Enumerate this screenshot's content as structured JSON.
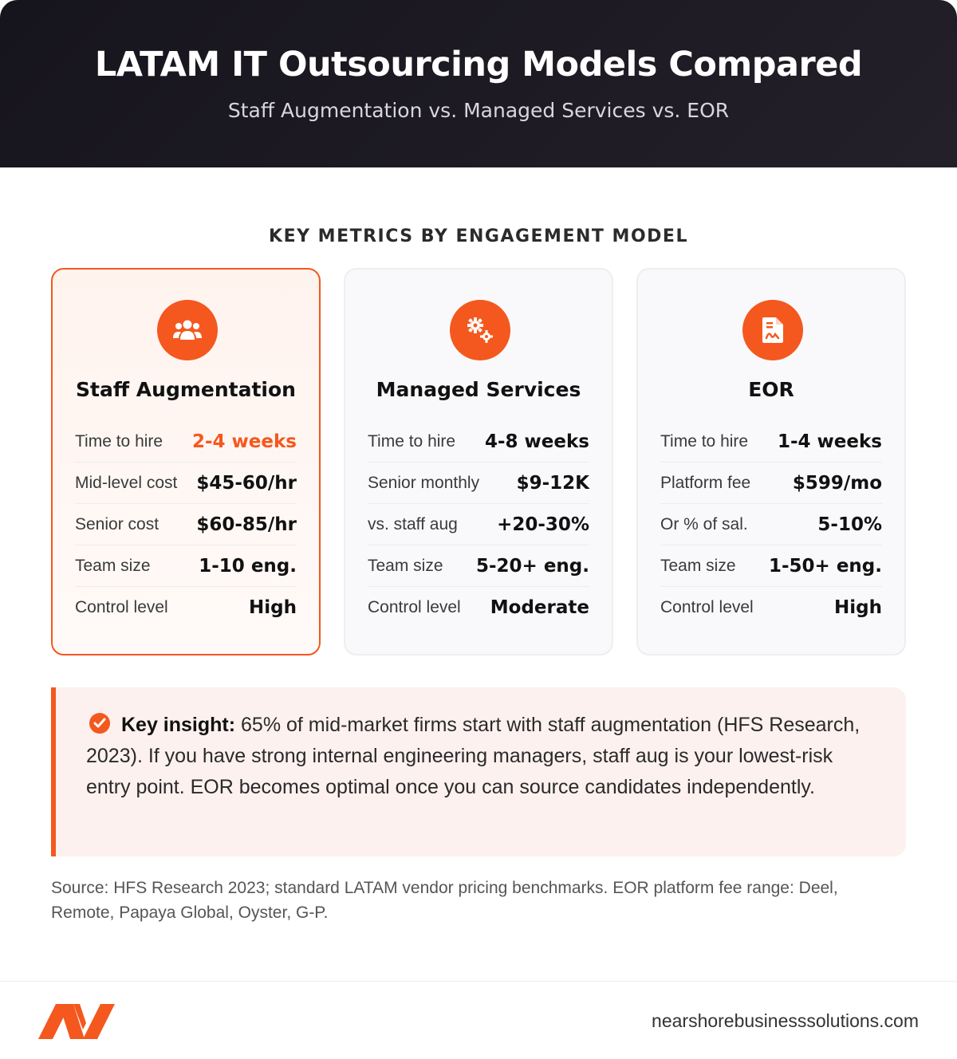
{
  "header": {
    "title": "LATAM IT Outsourcing Models Compared",
    "subtitle": "Staff Augmentation vs. Managed Services vs. EOR"
  },
  "section_title": "KEY METRICS BY ENGAGEMENT MODEL",
  "colors": {
    "accent": "#f4581e",
    "header_bg": "#1c1a22"
  },
  "cards": [
    {
      "title": "Staff Augmentation",
      "icon": "users-group-icon",
      "highlighted": true,
      "rows": [
        {
          "label": "Time to hire",
          "value": "2-4 weeks"
        },
        {
          "label": "Mid-level cost",
          "value": "$45-60/hr"
        },
        {
          "label": "Senior cost",
          "value": "$60-85/hr"
        },
        {
          "label": "Team size",
          "value": "1-10 eng."
        },
        {
          "label": "Control level",
          "value": "High"
        }
      ]
    },
    {
      "title": "Managed Services",
      "icon": "gears-icon",
      "highlighted": false,
      "rows": [
        {
          "label": "Time to hire",
          "value": "4-8 weeks"
        },
        {
          "label": "Senior monthly",
          "value": "$9-12K"
        },
        {
          "label": "vs. staff aug",
          "value": "+20-30%"
        },
        {
          "label": "Team size",
          "value": "5-20+ eng."
        },
        {
          "label": "Control level",
          "value": "Moderate"
        }
      ]
    },
    {
      "title": "EOR",
      "icon": "document-signature-icon",
      "highlighted": false,
      "rows": [
        {
          "label": "Time to hire",
          "value": "1-4 weeks"
        },
        {
          "label": "Platform fee",
          "value": "$599/mo"
        },
        {
          "label": "Or % of sal.",
          "value": "5-10%"
        },
        {
          "label": "Team size",
          "value": "1-50+ eng."
        },
        {
          "label": "Control level",
          "value": "High"
        }
      ]
    }
  ],
  "insight": {
    "icon": "check-circle-icon",
    "lead": "Key insight:",
    "body": "65% of mid-market firms start with staff augmentation (HFS Research, 2023). If you have strong internal engineering managers, staff aug is your lowest-risk entry point. EOR becomes optimal once you can source candidates independently."
  },
  "source": "Source: HFS Research 2023; standard LATAM vendor pricing benchmarks. EOR platform fee range: Deel, Remote, Papaya Global, Oyster, G-P.",
  "footer": {
    "logo": "nearshore-logo-icon",
    "site": "nearshorebusinesssolutions.com"
  }
}
